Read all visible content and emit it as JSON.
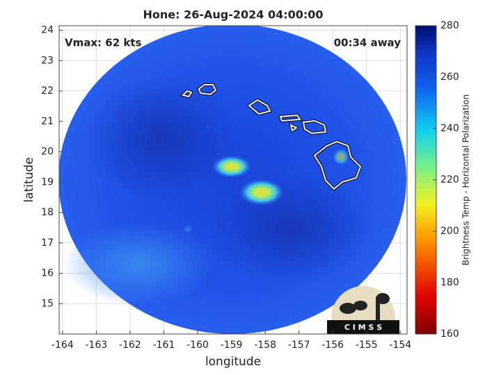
{
  "title": "Hone: 26-Aug-2024 04:00:00",
  "annotations": {
    "vmax": "Vmax: 62 kts",
    "eta": "00:34 away"
  },
  "map": {
    "xlabel": "longitude",
    "ylabel": "latitude",
    "xlim": [
      -164.1,
      -153.8
    ],
    "ylim": [
      14.0,
      24.15
    ],
    "xticks": [
      -164,
      -163,
      -162,
      -161,
      -160,
      -159,
      -158,
      -157,
      -156,
      -155,
      -154
    ],
    "yticks": [
      15,
      16,
      17,
      18,
      19,
      20,
      21,
      22,
      23,
      24
    ],
    "grid": true
  },
  "colorbar": {
    "label": "Brightness Temp - Horizontal Polarization",
    "lim": [
      160,
      280
    ],
    "ticks": [
      160,
      180,
      200,
      220,
      240,
      260,
      280
    ]
  },
  "logo": "C I M S S"
}
